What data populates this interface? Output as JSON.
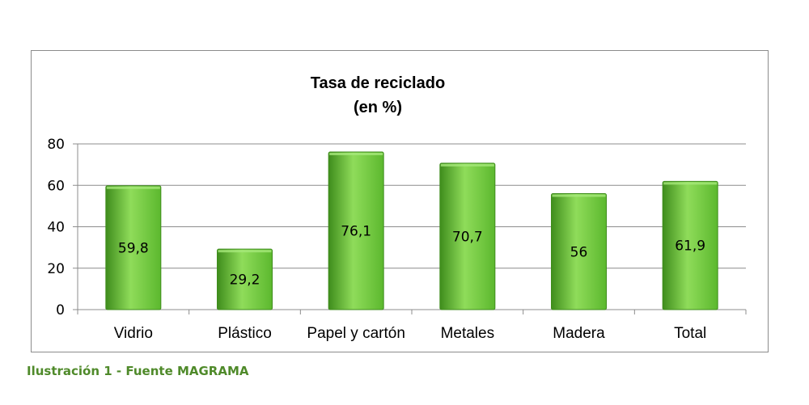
{
  "chart_data": {
    "type": "bar",
    "title": "Tasa de reciclado",
    "subtitle": "(en %)",
    "categories": [
      "Vidrio",
      "Plástico",
      "Papel y cartón",
      "Metales",
      "Madera",
      "Total"
    ],
    "values": [
      59.8,
      29.2,
      76.1,
      70.7,
      56,
      61.9
    ],
    "value_labels": [
      "59,8",
      "29,2",
      "76,1",
      "70,7",
      "56",
      "61,9"
    ],
    "ylim": [
      0,
      80
    ],
    "yticks": [
      "0",
      "20",
      "40",
      "60",
      "80"
    ],
    "ytick_values": [
      0,
      20,
      40,
      60,
      80
    ],
    "grid": true,
    "legend": "none",
    "bar_color": "#5cb82e",
    "bar_color_light": "#8fdc5a",
    "bar_color_dark": "#3f8d1c"
  },
  "caption": "Ilustración 1 - Fuente MAGRAMA"
}
